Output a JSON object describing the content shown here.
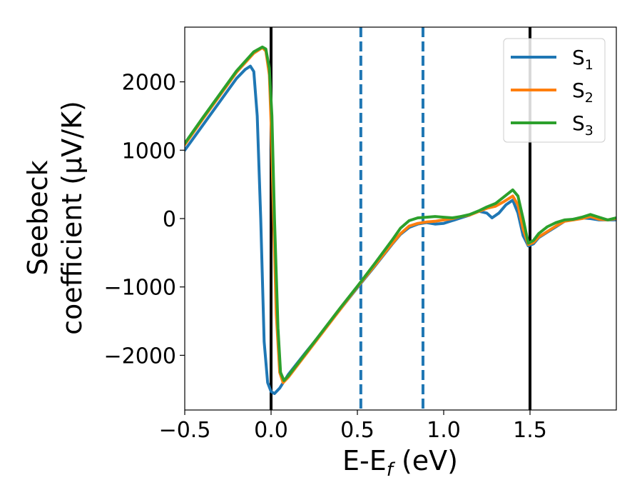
{
  "chart_data": {
    "type": "line",
    "title": "",
    "xlabel": "E-E",
    "xlabel_sub": "f",
    "xlabel_unit": " (eV)",
    "ylabel_line1": "Seebeck",
    "ylabel_line2": "coefficient  (μV/K)",
    "xlim": [
      -0.5,
      2.0
    ],
    "ylim": [
      -2800,
      2800
    ],
    "x_ticks": [
      -0.5,
      0.0,
      0.5,
      1.0,
      1.5
    ],
    "x_tick_labels": [
      "−0.5",
      "0.0",
      "0.5",
      "1.0",
      "1.5"
    ],
    "y_ticks": [
      -2000,
      -1000,
      0,
      1000,
      2000
    ],
    "y_tick_labels": [
      "−2000",
      "−1000",
      "0",
      "1000",
      "2000"
    ],
    "grid": false,
    "legend_position": "top-right",
    "vertical_lines": [
      {
        "x": 0.0,
        "style": "solid",
        "color": "#000000"
      },
      {
        "x": 1.5,
        "style": "solid",
        "color": "#000000"
      },
      {
        "x": 0.52,
        "style": "dashed",
        "color": "#1f77b4"
      },
      {
        "x": 0.88,
        "style": "dashed",
        "color": "#1f77b4"
      }
    ],
    "series": [
      {
        "name": "S",
        "name_sub": "1",
        "color": "#1f77b4",
        "points": [
          [
            -0.5,
            1000
          ],
          [
            -0.4,
            1350
          ],
          [
            -0.3,
            1700
          ],
          [
            -0.2,
            2050
          ],
          [
            -0.15,
            2180
          ],
          [
            -0.12,
            2230
          ],
          [
            -0.1,
            2150
          ],
          [
            -0.08,
            1500
          ],
          [
            -0.06,
            0
          ],
          [
            -0.04,
            -1800
          ],
          [
            -0.02,
            -2400
          ],
          [
            0.0,
            -2530
          ],
          [
            0.02,
            -2560
          ],
          [
            0.05,
            -2480
          ],
          [
            0.1,
            -2280
          ],
          [
            0.2,
            -1960
          ],
          [
            0.3,
            -1650
          ],
          [
            0.4,
            -1330
          ],
          [
            0.5,
            -1010
          ],
          [
            0.6,
            -700
          ],
          [
            0.7,
            -380
          ],
          [
            0.75,
            -230
          ],
          [
            0.8,
            -130
          ],
          [
            0.85,
            -80
          ],
          [
            0.9,
            -60
          ],
          [
            0.95,
            -80
          ],
          [
            1.0,
            -70
          ],
          [
            1.05,
            -30
          ],
          [
            1.1,
            10
          ],
          [
            1.15,
            50
          ],
          [
            1.2,
            110
          ],
          [
            1.25,
            80
          ],
          [
            1.28,
            10
          ],
          [
            1.32,
            80
          ],
          [
            1.36,
            200
          ],
          [
            1.4,
            270
          ],
          [
            1.43,
            80
          ],
          [
            1.46,
            -250
          ],
          [
            1.49,
            -400
          ],
          [
            1.52,
            -370
          ],
          [
            1.55,
            -280
          ],
          [
            1.6,
            -200
          ],
          [
            1.65,
            -120
          ],
          [
            1.7,
            -40
          ],
          [
            1.75,
            -10
          ],
          [
            1.8,
            10
          ],
          [
            1.85,
            0
          ],
          [
            1.9,
            -20
          ],
          [
            2.0,
            -20
          ]
        ]
      },
      {
        "name": "S",
        "name_sub": "2",
        "color": "#ff7f0e",
        "points": [
          [
            -0.5,
            1080
          ],
          [
            -0.4,
            1440
          ],
          [
            -0.3,
            1790
          ],
          [
            -0.2,
            2140
          ],
          [
            -0.1,
            2420
          ],
          [
            -0.05,
            2500
          ],
          [
            -0.03,
            2450
          ],
          [
            -0.01,
            2100
          ],
          [
            0.0,
            1400
          ],
          [
            0.015,
            0
          ],
          [
            0.03,
            -1400
          ],
          [
            0.05,
            -2250
          ],
          [
            0.07,
            -2400
          ],
          [
            0.1,
            -2320
          ],
          [
            0.2,
            -1990
          ],
          [
            0.3,
            -1660
          ],
          [
            0.4,
            -1330
          ],
          [
            0.5,
            -1000
          ],
          [
            0.6,
            -690
          ],
          [
            0.7,
            -370
          ],
          [
            0.75,
            -220
          ],
          [
            0.8,
            -110
          ],
          [
            0.85,
            -70
          ],
          [
            0.9,
            -50
          ],
          [
            0.95,
            -40
          ],
          [
            1.0,
            -20
          ],
          [
            1.05,
            0
          ],
          [
            1.1,
            30
          ],
          [
            1.15,
            50
          ],
          [
            1.2,
            100
          ],
          [
            1.25,
            150
          ],
          [
            1.3,
            180
          ],
          [
            1.35,
            250
          ],
          [
            1.4,
            330
          ],
          [
            1.43,
            200
          ],
          [
            1.46,
            -150
          ],
          [
            1.49,
            -380
          ],
          [
            1.52,
            -350
          ],
          [
            1.55,
            -270
          ],
          [
            1.6,
            -190
          ],
          [
            1.65,
            -110
          ],
          [
            1.7,
            -40
          ],
          [
            1.75,
            -20
          ],
          [
            1.8,
            0
          ],
          [
            1.85,
            30
          ],
          [
            1.9,
            -10
          ],
          [
            1.95,
            -20
          ],
          [
            2.0,
            0
          ]
        ]
      },
      {
        "name": "S",
        "name_sub": "3",
        "color": "#2ca02c",
        "points": [
          [
            -0.5,
            1100
          ],
          [
            -0.4,
            1460
          ],
          [
            -0.3,
            1810
          ],
          [
            -0.2,
            2160
          ],
          [
            -0.1,
            2440
          ],
          [
            -0.05,
            2510
          ],
          [
            -0.03,
            2480
          ],
          [
            -0.01,
            2200
          ],
          [
            0.005,
            1500
          ],
          [
            0.02,
            0
          ],
          [
            0.04,
            -1600
          ],
          [
            0.055,
            -2250
          ],
          [
            0.075,
            -2370
          ],
          [
            0.1,
            -2300
          ],
          [
            0.2,
            -1970
          ],
          [
            0.3,
            -1640
          ],
          [
            0.4,
            -1310
          ],
          [
            0.5,
            -990
          ],
          [
            0.6,
            -660
          ],
          [
            0.7,
            -320
          ],
          [
            0.75,
            -140
          ],
          [
            0.8,
            -30
          ],
          [
            0.85,
            10
          ],
          [
            0.9,
            20
          ],
          [
            0.95,
            30
          ],
          [
            1.0,
            20
          ],
          [
            1.05,
            10
          ],
          [
            1.1,
            30
          ],
          [
            1.15,
            60
          ],
          [
            1.2,
            110
          ],
          [
            1.25,
            170
          ],
          [
            1.3,
            220
          ],
          [
            1.35,
            320
          ],
          [
            1.4,
            420
          ],
          [
            1.43,
            330
          ],
          [
            1.46,
            0
          ],
          [
            1.49,
            -360
          ],
          [
            1.52,
            -320
          ],
          [
            1.55,
            -220
          ],
          [
            1.6,
            -120
          ],
          [
            1.65,
            -60
          ],
          [
            1.7,
            -20
          ],
          [
            1.75,
            -10
          ],
          [
            1.8,
            20
          ],
          [
            1.85,
            60
          ],
          [
            1.9,
            20
          ],
          [
            1.95,
            -20
          ],
          [
            2.0,
            10
          ]
        ]
      }
    ]
  }
}
